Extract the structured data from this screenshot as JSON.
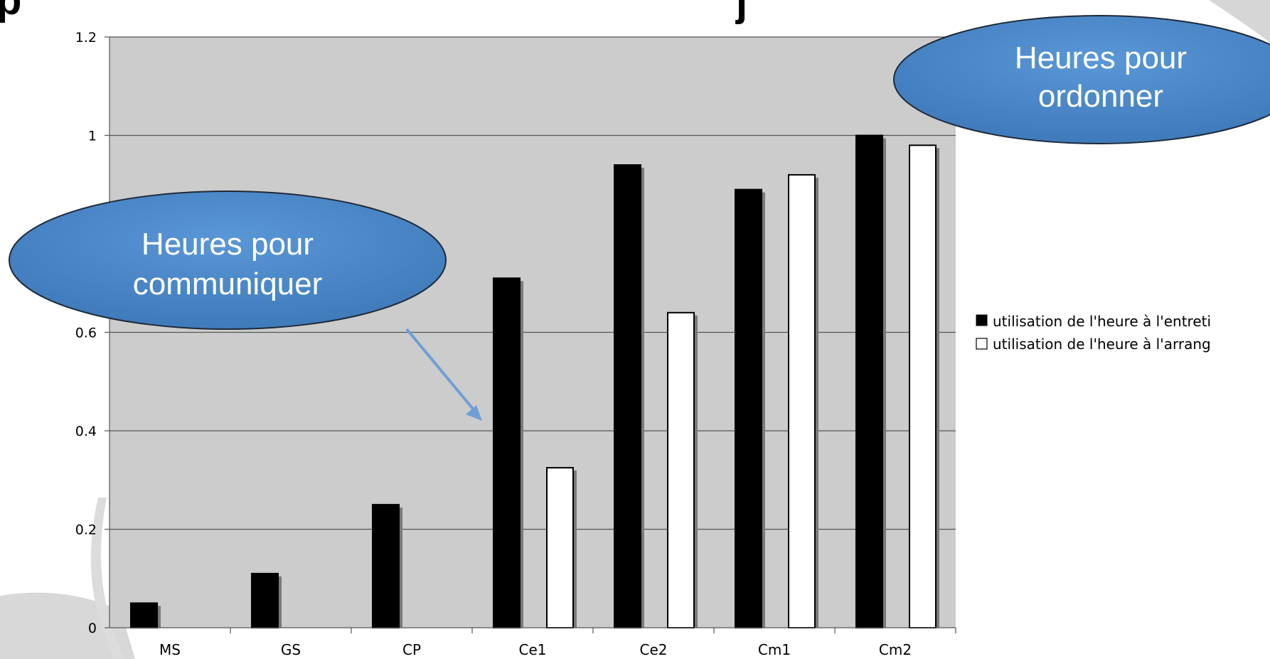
{
  "title_fragment_left": "p",
  "title_fragment_right": "j",
  "chart_data": {
    "type": "bar",
    "categories": [
      "MS",
      "GS",
      "CP",
      "Ce1",
      "Ce2",
      "Cm1",
      "Cm2"
    ],
    "series": [
      {
        "name": "utilisation de l'heure à l'entretien",
        "values": [
          0.05,
          0.11,
          0.25,
          0.71,
          0.94,
          0.89,
          1.0
        ],
        "color": "#000000"
      },
      {
        "name": "utilisation de l'heure à l'arrangement",
        "values": [
          null,
          null,
          null,
          0.325,
          0.64,
          0.92,
          0.98
        ],
        "color": "#ffffff"
      }
    ],
    "y_ticks": [
      "0",
      "0.2",
      "0.4",
      "0.6",
      "1",
      "1.2"
    ],
    "ylim": [
      0,
      1.2
    ],
    "grid": true,
    "plot_background": "#cccccc",
    "legend_position": "right",
    "legend_visible_text": [
      "utilisation de l'heure à l'entreti",
      "utilisation de l'heure à l'arrang"
    ]
  },
  "annotations": [
    {
      "id": "communiquer",
      "lines": [
        "Heures pour",
        "communiquer"
      ],
      "fill": "#4a86c8"
    },
    {
      "id": "ordonner",
      "lines": [
        "Heures pour",
        "ordonner"
      ],
      "fill": "#4a86c8"
    }
  ],
  "arrow_color": "#6f9fd6"
}
